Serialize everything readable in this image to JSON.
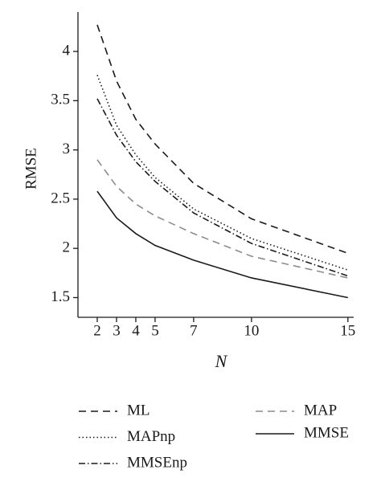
{
  "chart_data": {
    "type": "line",
    "x_label": "N",
    "y_label": "RMSE",
    "x": [
      2,
      3,
      4,
      5,
      7,
      10,
      15
    ],
    "xlim": [
      1,
      15.3
    ],
    "xticks": [
      2,
      3,
      4,
      5,
      7,
      10,
      15
    ],
    "ylim": [
      1.3,
      4.4
    ],
    "yticks": [
      1.5,
      2,
      2.5,
      3,
      3.5,
      4
    ],
    "series": [
      {
        "name": "ML",
        "color": "#1a1a1a",
        "dash": "9,6",
        "values": [
          4.27,
          3.7,
          3.31,
          3.06,
          2.66,
          2.3,
          1.95
        ]
      },
      {
        "name": "MAPnp",
        "color": "#1a1a1a",
        "dash": "1.5,3",
        "values": [
          3.76,
          3.25,
          2.95,
          2.72,
          2.4,
          2.1,
          1.78
        ]
      },
      {
        "name": "MMSEnp",
        "color": "#1a1a1a",
        "dash": "8,3,1.5,3",
        "values": [
          3.52,
          3.15,
          2.88,
          2.68,
          2.36,
          2.05,
          1.72
        ]
      },
      {
        "name": "MAP",
        "color": "#8c8c8c",
        "dash": "9,6",
        "values": [
          2.9,
          2.63,
          2.45,
          2.33,
          2.15,
          1.92,
          1.7
        ]
      },
      {
        "name": "MMSE",
        "color": "#1a1a1a",
        "dash": "none",
        "values": [
          2.58,
          2.31,
          2.15,
          2.03,
          1.88,
          1.7,
          1.5
        ]
      }
    ]
  }
}
